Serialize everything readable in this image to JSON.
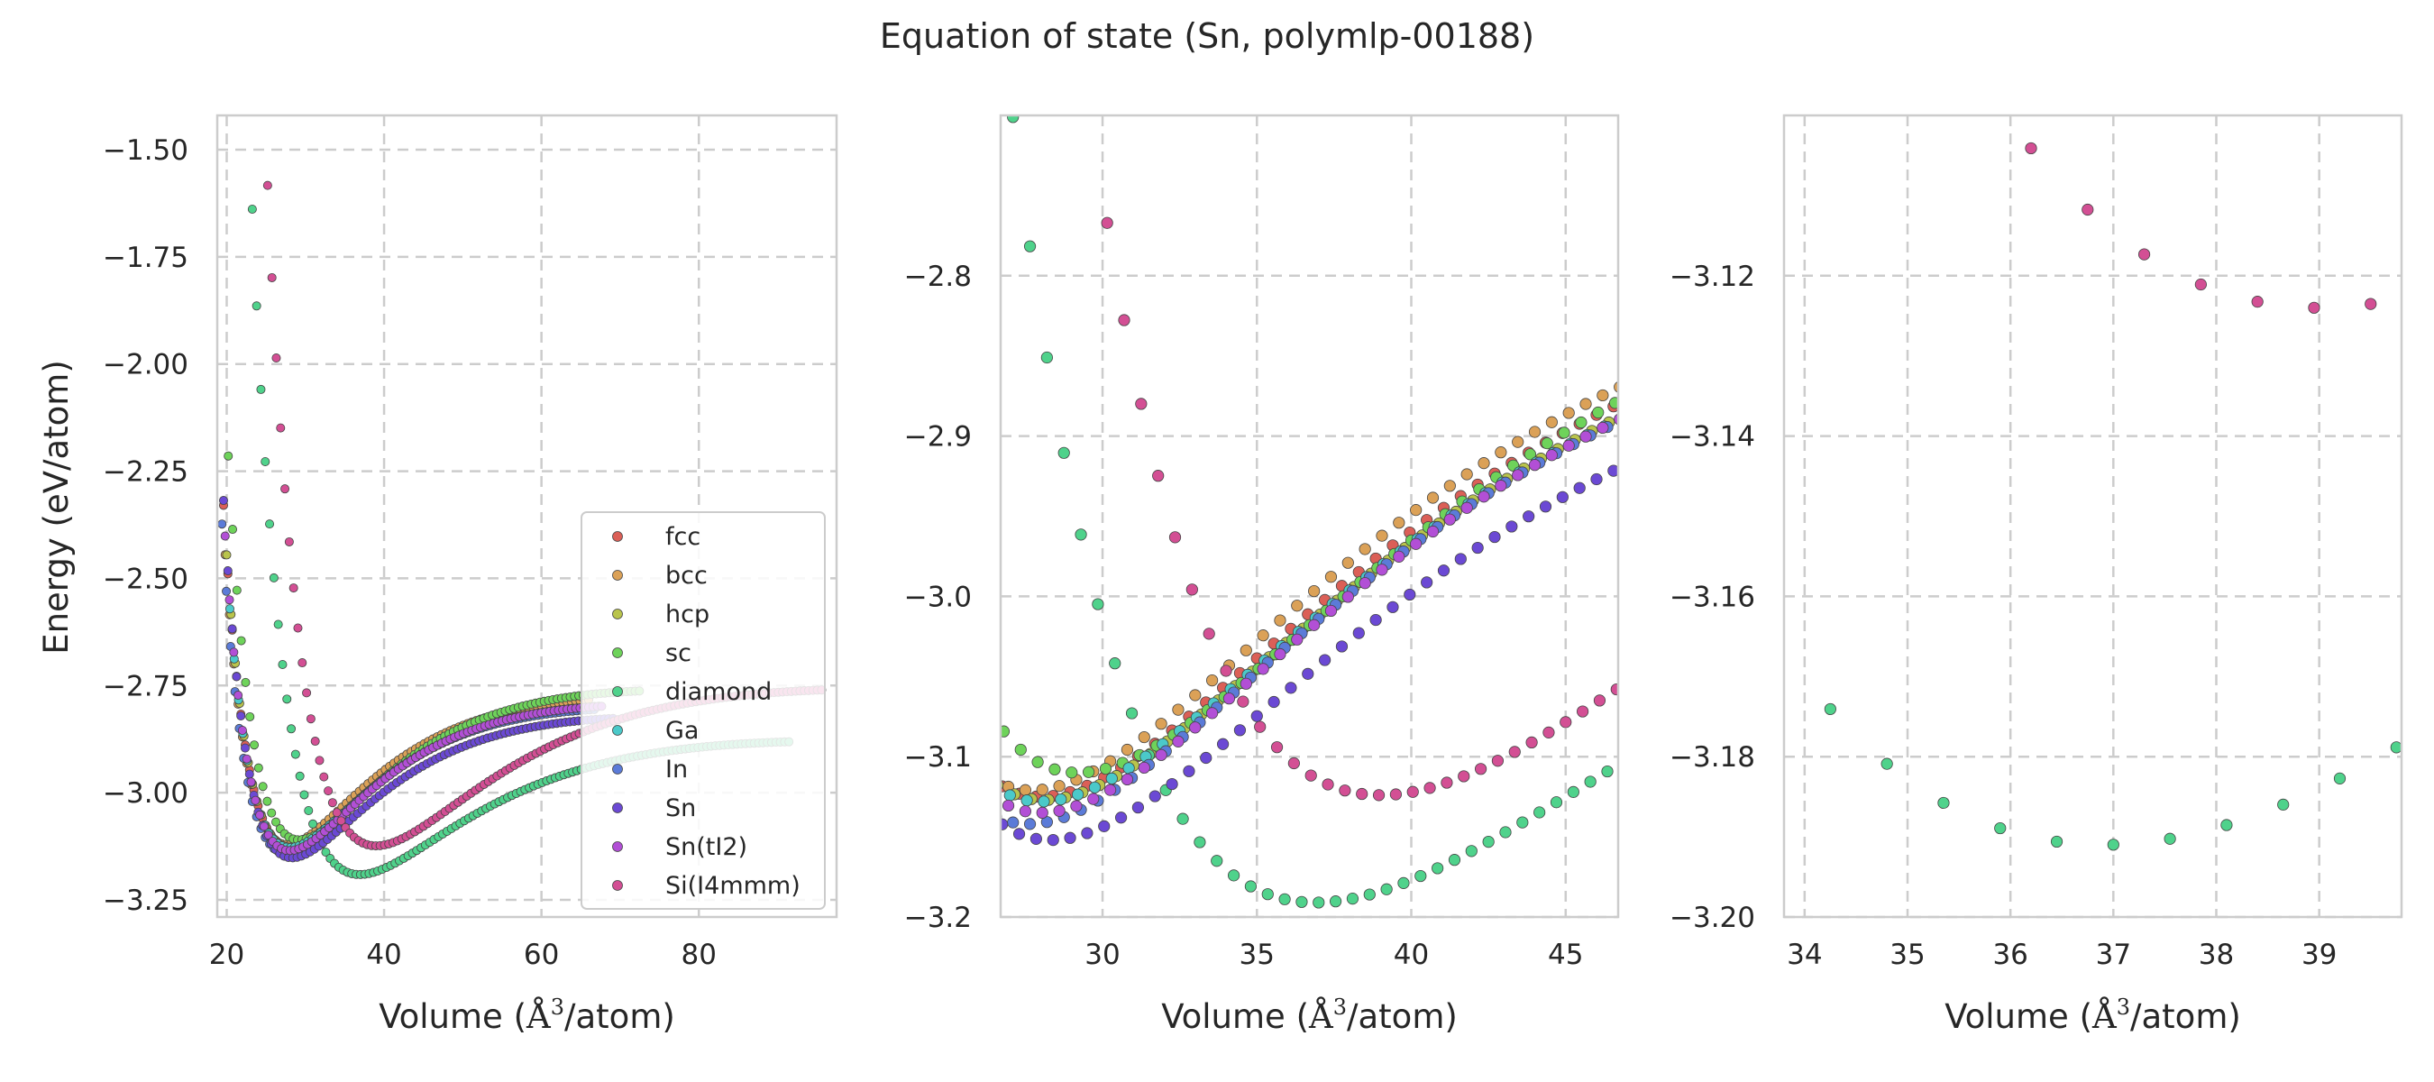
{
  "chart_data": {
    "type": "scatter",
    "title": "Equation of state (Sn, polymlp-00188)",
    "xlabel_prefix": "Volume (",
    "xlabel_unit": "Å",
    "xlabel_exp": "3",
    "xlabel_suffix": "/atom)",
    "ylabel": "Energy (eV/atom)",
    "grid": true,
    "legend_position": "lower-right of first panel",
    "series": [
      {
        "name": "fcc",
        "color": "#db5f57",
        "V0": 28.0,
        "E0": -3.125,
        "B": 0.0036,
        "Vmin": 19.6,
        "Vmax": 66.0,
        "step": 0.55
      },
      {
        "name": "bcc",
        "color": "#dba157",
        "V0": 27.7,
        "E0": -3.121,
        "B": 0.0037,
        "Vmin": 19.8,
        "Vmax": 66.5,
        "step": 0.55
      },
      {
        "name": "hcp",
        "color": "#b9c44b",
        "V0": 28.1,
        "E0": -3.127,
        "B": 0.0035,
        "Vmin": 20.0,
        "Vmax": 67.5,
        "step": 0.55
      },
      {
        "name": "sc",
        "color": "#6ed35a",
        "V0": 29.2,
        "E0": -3.11,
        "B": 0.0034,
        "Vmin": 20.2,
        "Vmax": 72.8,
        "step": 0.55
      },
      {
        "name": "diamond",
        "color": "#4fd28b",
        "V0": 36.9,
        "E0": -3.191,
        "B": 0.0019,
        "Vmin": 20.5,
        "Vmax": 91.5,
        "step": 0.55
      },
      {
        "name": "Ga",
        "color": "#4bc9c9",
        "V0": 28.0,
        "E0": -3.128,
        "B": 0.0035,
        "Vmin": 20.4,
        "Vmax": 66.5,
        "step": 0.55
      },
      {
        "name": "In",
        "color": "#5b7bd8",
        "V0": 27.6,
        "E0": -3.142,
        "B": 0.0037,
        "Vmin": 19.4,
        "Vmax": 67.0,
        "step": 0.55
      },
      {
        "name": "Sn",
        "color": "#6b49d4",
        "V0": 28.3,
        "E0": -3.152,
        "B": 0.0034,
        "Vmin": 19.6,
        "Vmax": 69.5,
        "step": 0.55
      },
      {
        "name": "Sn(tI2)",
        "color": "#b24fd6",
        "V0": 28.0,
        "E0": -3.135,
        "B": 0.0036,
        "Vmin": 19.8,
        "Vmax": 68.0,
        "step": 0.55
      },
      {
        "name": "Si(I4mmm)",
        "color": "#d34f94",
        "V0": 39.0,
        "E0": -3.124,
        "B": 0.002,
        "Vmin": 20.8,
        "Vmax": 96.0,
        "step": 0.55
      }
    ],
    "panels": [
      {
        "xlim": [
          18.8,
          97.5
        ],
        "ylim": [
          -3.29,
          -1.42
        ],
        "xticks": [
          20,
          40,
          60,
          80
        ],
        "yticks": [
          -1.5,
          -1.75,
          -2.0,
          -2.25,
          -2.5,
          -2.75,
          -3.0,
          -3.25
        ],
        "ytick_labels": [
          "−1.50",
          "−1.75",
          "−2.00",
          "−2.25",
          "−2.50",
          "−2.75",
          "−3.00",
          "−3.25"
        ],
        "xtick_labels": [
          "20",
          "40",
          "60",
          "80"
        ],
        "legend": true
      },
      {
        "xlim": [
          26.7,
          46.7
        ],
        "ylim": [
          -3.2,
          -2.7
        ],
        "xticks": [
          30,
          35,
          40,
          45
        ],
        "yticks": [
          -2.8,
          -2.9,
          -3.0,
          -3.1,
          -3.2
        ],
        "ytick_labels": [
          "−2.8",
          "−2.9",
          "−3.0",
          "−3.1",
          "−3.2"
        ],
        "xtick_labels": [
          "30",
          "35",
          "40",
          "45"
        ],
        "legend": false
      },
      {
        "xlim": [
          33.8,
          39.8
        ],
        "ylim": [
          -3.2,
          -3.1
        ],
        "xticks": [
          34,
          35,
          36,
          37,
          38,
          39
        ],
        "yticks": [
          -3.12,
          -3.14,
          -3.16,
          -3.18,
          -3.2
        ],
        "ytick_labels": [
          "−3.12",
          "−3.14",
          "−3.16",
          "−3.18",
          "−3.20"
        ],
        "xtick_labels": [
          "34",
          "35",
          "36",
          "37",
          "38",
          "39"
        ],
        "legend": false
      }
    ]
  }
}
